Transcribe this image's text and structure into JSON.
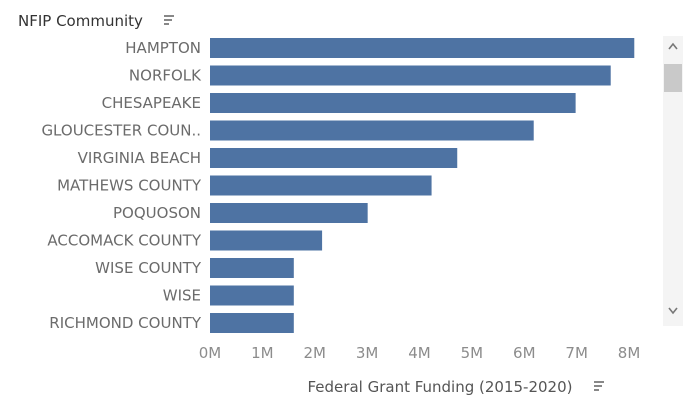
{
  "chart_data": {
    "type": "bar",
    "orientation": "horizontal",
    "row_header": "NFIP Community",
    "xlabel": "Federal Grant Funding (2015-2020)",
    "categories": [
      "HAMPTON",
      "NORFOLK",
      "CHESAPEAKE",
      "GLOUCESTER COUN..",
      "VIRGINIA BEACH",
      "MATHEWS COUNTY",
      "POQUOSON",
      "ACCOMACK COUNTY",
      "WISE COUNTY",
      "WISE",
      "RICHMOND COUNTY"
    ],
    "values": [
      8100000,
      7650000,
      6980000,
      6180000,
      4720000,
      4230000,
      3010000,
      2140000,
      1600000,
      1600000,
      1600000
    ],
    "xlim": [
      0,
      8400000
    ],
    "x_ticks": [
      0,
      1000000,
      2000000,
      3000000,
      4000000,
      5000000,
      6000000,
      7000000,
      8000000
    ],
    "x_tick_labels": [
      "0M",
      "1M",
      "2M",
      "3M",
      "4M",
      "5M",
      "6M",
      "7M",
      "8M"
    ],
    "bar_color": "#4e73a3",
    "grid": false,
    "legend": "none"
  },
  "scrollbar": {
    "up_arrow_icon": "chevron-up-icon",
    "down_arrow_icon": "chevron-down-icon"
  },
  "sort_icon": "sort-descending-icon"
}
